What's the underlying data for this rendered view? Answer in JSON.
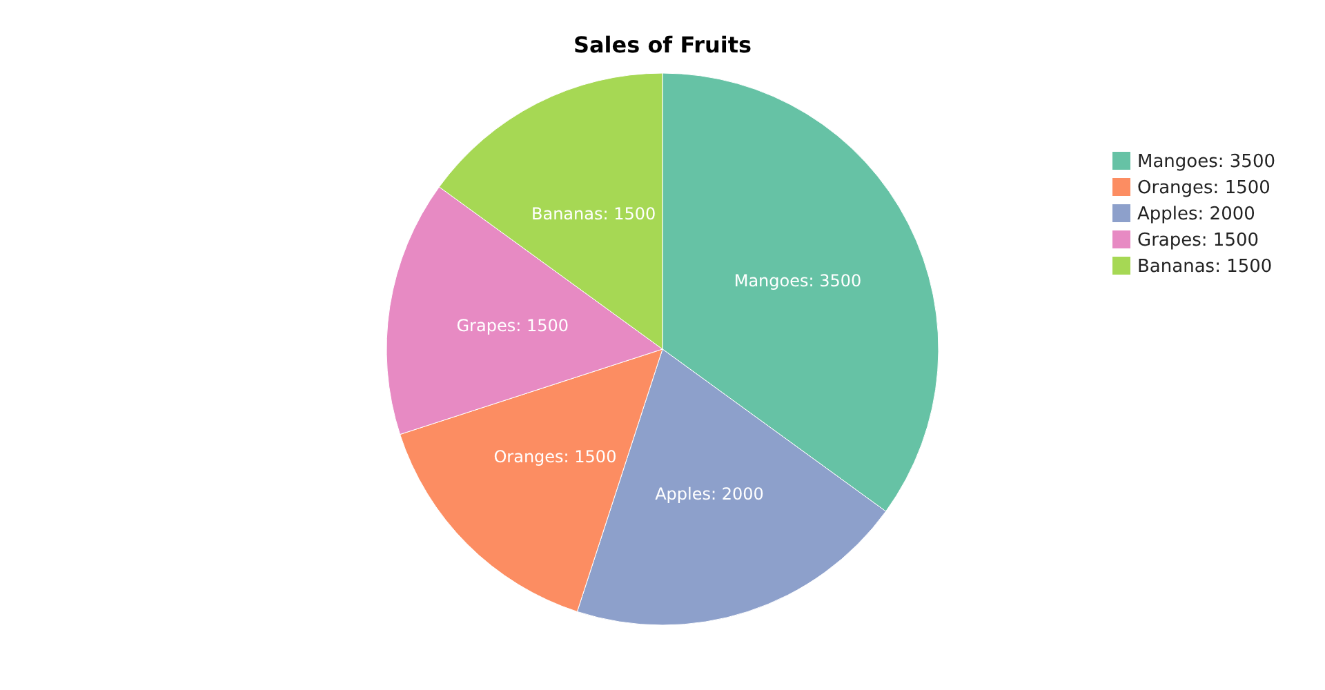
{
  "chart_data": {
    "type": "pie",
    "title": "Sales of Fruits",
    "categories": [
      "Mangoes: 3500",
      "Oranges: 1500",
      "Apples: 2000",
      "Grapes: 1500",
      "Bananas: 1500"
    ],
    "values": [
      3500,
      1500,
      2000,
      1500,
      1500
    ],
    "colors": [
      "#66c2a5",
      "#fc8d62",
      "#8da0cb",
      "#e78ac3",
      "#a6d854"
    ],
    "legend": "top right"
  }
}
